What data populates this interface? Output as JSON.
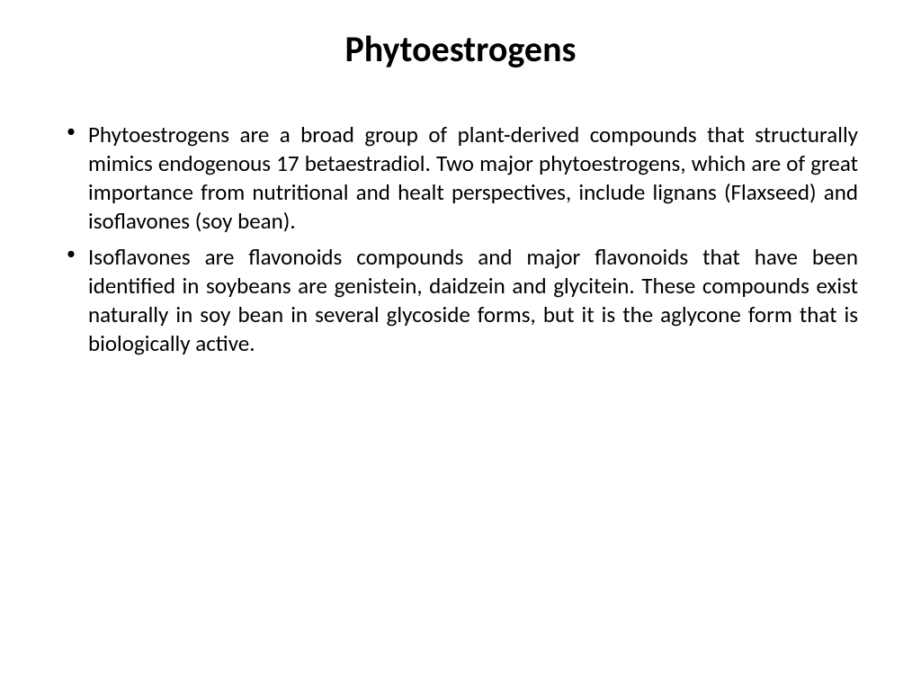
{
  "title": "Phytoestrogens",
  "bullets": [
    "Phytoestrogens are a broad group of plant-derived compounds that structurally mimics endogenous 17 betaestradiol. Two major phytoestrogens, which are of great importance from nutritional and healt perspectives, include lignans (Flaxseed) and isoflavones (soy bean).",
    "Isoflavones are flavonoids compounds and major flavonoids that have been identified in soybeans are genistein, daidzein and glycitein. These compounds exist naturally in soy bean in several glycoside forms, but it is the aglycone form that is biologically active."
  ],
  "styling": {
    "background_color": "#ffffff",
    "text_color": "#000000",
    "title_fontsize": 40,
    "title_fontweight": "bold",
    "body_fontsize": 25,
    "text_align": "justify",
    "font_family": "Calibri"
  }
}
